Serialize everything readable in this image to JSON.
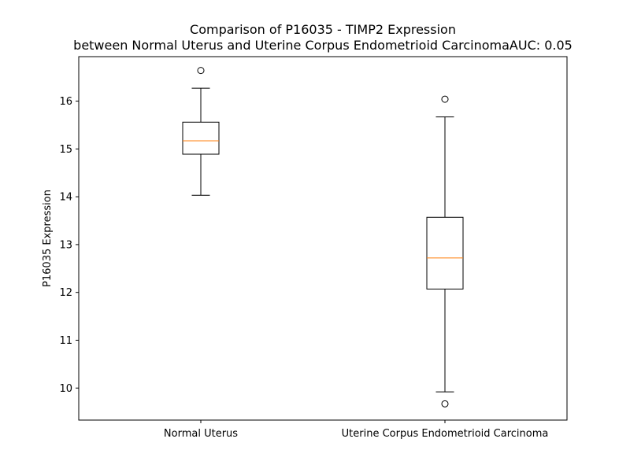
{
  "chart_data": {
    "type": "box",
    "title": "Comparison of P16035 - TIMP2 Expression",
    "subtitle": "between Normal Uterus and Uterine Corpus Endometrioid CarcinomaAUC: 0.05",
    "xlabel": "",
    "ylabel": "P16035 Expression",
    "ylim": [
      9.33,
      16.93
    ],
    "yticks": [
      10,
      11,
      12,
      13,
      14,
      15,
      16
    ],
    "grid": false,
    "categories": [
      "Normal Uterus",
      "Uterine Corpus Endometrioid Carcinoma"
    ],
    "boxes": [
      {
        "category": "Normal Uterus",
        "whisker_low": 14.03,
        "q1": 14.89,
        "median": 15.17,
        "q3": 15.56,
        "whisker_high": 16.27,
        "outliers": [
          16.64
        ]
      },
      {
        "category": "Uterine Corpus Endometrioid Carcinoma",
        "whisker_low": 9.92,
        "q1": 12.07,
        "median": 12.72,
        "q3": 13.57,
        "whisker_high": 15.67,
        "outliers": [
          16.04,
          9.67
        ]
      }
    ],
    "colors": {
      "box": "#000000",
      "median": "#ff7f0e",
      "background": "#ffffff"
    }
  }
}
